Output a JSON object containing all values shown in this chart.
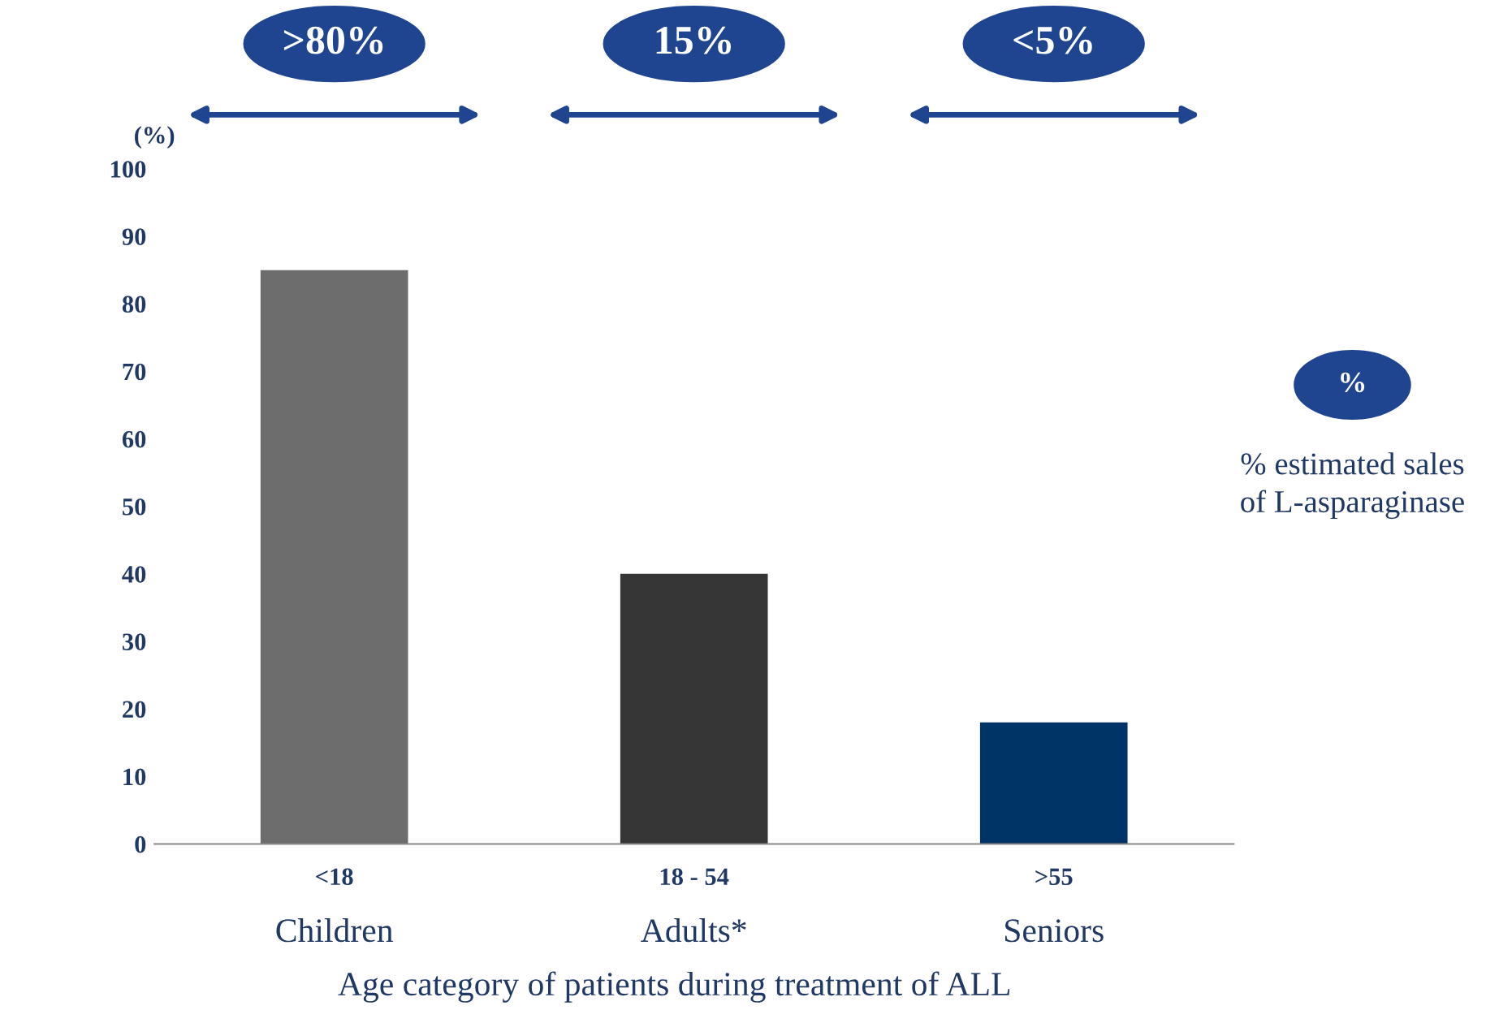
{
  "chart_data": {
    "type": "bar",
    "ylabel": "(%)",
    "xlabel": "Age category of patients during treatment of ALL",
    "categories": [
      "<18\nChildren",
      "18 - 54\nAdults*",
      ">55\nSeniors"
    ],
    "values": [
      85,
      40,
      18
    ],
    "colors": [
      "#6d6d6d",
      "#363636",
      "#003366"
    ],
    "ylim": [
      0,
      100
    ],
    "yticks": [
      0,
      10,
      20,
      30,
      40,
      50,
      60,
      70,
      80,
      90,
      100
    ],
    "grid": false,
    "annotations": [
      ">80%",
      "15%",
      "<5%",
      "%",
      "% estimated sales\nof L-asparaginase"
    ]
  }
}
